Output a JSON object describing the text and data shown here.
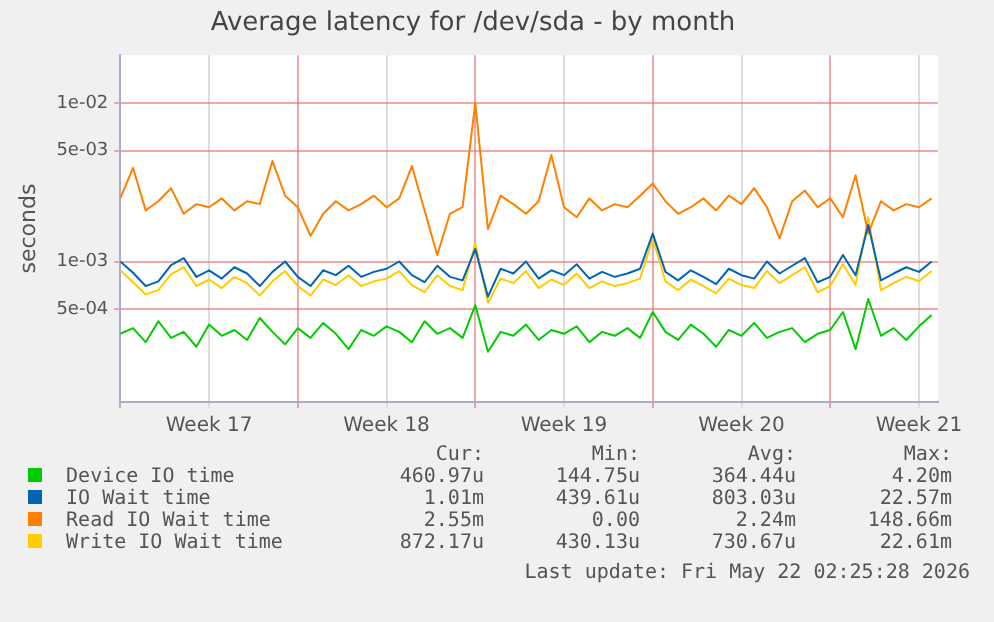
{
  "chart_data": {
    "type": "line",
    "title": "Average latency for /dev/sda - by month",
    "ylabel": "seconds",
    "log": "y",
    "grid": true,
    "legend": "bottom",
    "marker": "none",
    "line_style": "solid",
    "x": [
      "2026-04-20T00:00",
      "2026-04-20T12:00",
      "2026-04-21T00:00",
      "2026-04-21T12:00",
      "2026-04-22T00:00",
      "2026-04-22T12:00",
      "2026-04-23T00:00",
      "2026-04-23T12:00",
      "2026-04-24T00:00",
      "2026-04-24T12:00",
      "2026-04-25T00:00",
      "2026-04-25T12:00",
      "2026-04-26T00:00",
      "2026-04-26T12:00",
      "2026-04-27T00:00",
      "2026-04-27T12:00",
      "2026-04-28T00:00",
      "2026-04-28T12:00",
      "2026-04-29T00:00",
      "2026-04-29T12:00",
      "2026-04-30T00:00",
      "2026-04-30T12:00",
      "2026-05-01T00:00",
      "2026-05-01T12:00",
      "2026-05-02T00:00",
      "2026-05-02T12:00",
      "2026-05-03T00:00",
      "2026-05-03T12:00",
      "2026-05-04T00:00",
      "2026-05-04T12:00",
      "2026-05-05T00:00",
      "2026-05-05T12:00",
      "2026-05-06T00:00",
      "2026-05-06T12:00",
      "2026-05-07T00:00",
      "2026-05-07T12:00",
      "2026-05-08T00:00",
      "2026-05-08T12:00",
      "2026-05-09T00:00",
      "2026-05-09T12:00",
      "2026-05-10T00:00",
      "2026-05-10T12:00",
      "2026-05-11T00:00",
      "2026-05-11T12:00",
      "2026-05-12T00:00",
      "2026-05-12T12:00",
      "2026-05-13T00:00",
      "2026-05-13T12:00",
      "2026-05-14T00:00",
      "2026-05-14T12:00",
      "2026-05-15T00:00",
      "2026-05-15T12:00",
      "2026-05-16T00:00",
      "2026-05-16T12:00",
      "2026-05-17T00:00",
      "2026-05-17T12:00",
      "2026-05-18T00:00",
      "2026-05-18T12:00",
      "2026-05-19T00:00",
      "2026-05-19T12:00",
      "2026-05-20T00:00",
      "2026-05-20T12:00",
      "2026-05-21T00:00",
      "2026-05-21T12:00",
      "2026-05-22T00:00"
    ],
    "xlim": [
      "2026-04-20T00:00",
      "2026-05-22T06:00"
    ],
    "xticks": [
      {
        "value": "2026-04-20T00:00",
        "label": null
      },
      {
        "value": "2026-04-23T12:00",
        "label": "Week 17"
      },
      {
        "value": "2026-04-27T00:00",
        "label": null
      },
      {
        "value": "2026-04-30T12:00",
        "label": "Week 18"
      },
      {
        "value": "2026-05-04T00:00",
        "label": null
      },
      {
        "value": "2026-05-07T12:00",
        "label": "Week 19"
      },
      {
        "value": "2026-05-11T00:00",
        "label": null
      },
      {
        "value": "2026-05-14T12:00",
        "label": "Week 20"
      },
      {
        "value": "2026-05-18T00:00",
        "label": null
      },
      {
        "value": "2026-05-21T12:00",
        "label": "Week 21"
      }
    ],
    "ylim": [
      0.00013,
      0.02
    ],
    "yticks": [
      {
        "value": 0.0005,
        "label": "5e-04"
      },
      {
        "value": 0.001,
        "label": "1e-03"
      },
      {
        "value": 0.005,
        "label": "5e-03"
      },
      {
        "value": 0.01,
        "label": "1e-02"
      }
    ],
    "series": [
      {
        "name": "Device IO time",
        "color": "#00cc00",
        "values": [
          0.00035,
          0.00038,
          0.00031,
          0.00042,
          0.00033,
          0.00036,
          0.00029,
          0.0004,
          0.00034,
          0.00037,
          0.00032,
          0.00044,
          0.00036,
          0.0003,
          0.00038,
          0.00033,
          0.00041,
          0.00035,
          0.00028,
          0.00037,
          0.00034,
          0.00039,
          0.00036,
          0.00031,
          0.00042,
          0.00035,
          0.00038,
          0.00033,
          0.00053,
          0.00027,
          0.00036,
          0.00034,
          0.0004,
          0.00032,
          0.00037,
          0.00035,
          0.00039,
          0.00031,
          0.00036,
          0.00034,
          0.00038,
          0.00033,
          0.00048,
          0.00036,
          0.00032,
          0.0004,
          0.00035,
          0.00029,
          0.00037,
          0.00034,
          0.00041,
          0.00033,
          0.00036,
          0.00038,
          0.00031,
          0.00035,
          0.00037,
          0.00048,
          0.00028,
          0.00058,
          0.00034,
          0.00038,
          0.00032,
          0.00039,
          0.00046
        ]
      },
      {
        "name": "IO Wait time",
        "color": "#0066b3",
        "values": [
          0.001,
          0.00085,
          0.0007,
          0.00075,
          0.00095,
          0.00105,
          0.0008,
          0.00088,
          0.00078,
          0.00092,
          0.00084,
          0.0007,
          0.00086,
          0.001,
          0.0008,
          0.0007,
          0.00088,
          0.00082,
          0.00094,
          0.0008,
          0.00086,
          0.0009,
          0.001,
          0.00082,
          0.00074,
          0.00094,
          0.0008,
          0.00076,
          0.0012,
          0.0006,
          0.0009,
          0.00084,
          0.001,
          0.00078,
          0.00088,
          0.00082,
          0.00096,
          0.00078,
          0.00086,
          0.0008,
          0.00084,
          0.0009,
          0.0015,
          0.00086,
          0.00076,
          0.00088,
          0.0008,
          0.00072,
          0.0009,
          0.00082,
          0.00078,
          0.001,
          0.00084,
          0.00094,
          0.00105,
          0.00074,
          0.0008,
          0.0011,
          0.00082,
          0.0017,
          0.00076,
          0.00084,
          0.00092,
          0.00086,
          0.001
        ]
      },
      {
        "name": "Read IO Wait time",
        "color": "#ff8000",
        "values": [
          0.0025,
          0.0039,
          0.0021,
          0.0024,
          0.0029,
          0.002,
          0.0023,
          0.0022,
          0.0025,
          0.0021,
          0.0024,
          0.0023,
          0.0043,
          0.0026,
          0.0022,
          0.00145,
          0.002,
          0.0024,
          0.0021,
          0.0023,
          0.0026,
          0.0022,
          0.0025,
          0.004,
          0.0021,
          0.0011,
          0.002,
          0.0022,
          0.01,
          0.0016,
          0.0026,
          0.0023,
          0.002,
          0.0024,
          0.0047,
          0.0022,
          0.0019,
          0.0025,
          0.0021,
          0.0023,
          0.0022,
          0.0026,
          0.0031,
          0.0024,
          0.002,
          0.0022,
          0.0025,
          0.0021,
          0.0026,
          0.0023,
          0.0029,
          0.0022,
          0.0014,
          0.0024,
          0.0028,
          0.0022,
          0.0025,
          0.0019,
          0.0035,
          0.0015,
          0.0024,
          0.0021,
          0.0023,
          0.0022,
          0.0025
        ]
      },
      {
        "name": "Write IO Wait time",
        "color": "#ffcc00",
        "values": [
          0.00088,
          0.00074,
          0.00062,
          0.00066,
          0.00083,
          0.00092,
          0.0007,
          0.00077,
          0.00068,
          0.0008,
          0.00073,
          0.00061,
          0.00075,
          0.00087,
          0.0007,
          0.00061,
          0.00077,
          0.00071,
          0.00082,
          0.0007,
          0.00075,
          0.00078,
          0.00087,
          0.00071,
          0.00064,
          0.00082,
          0.0007,
          0.00066,
          0.0013,
          0.00055,
          0.00078,
          0.00073,
          0.00087,
          0.00068,
          0.00077,
          0.00071,
          0.00084,
          0.00068,
          0.00075,
          0.0007,
          0.00073,
          0.00078,
          0.0014,
          0.00075,
          0.00066,
          0.00077,
          0.0007,
          0.00063,
          0.00078,
          0.00071,
          0.00068,
          0.00087,
          0.00073,
          0.00082,
          0.00092,
          0.00064,
          0.0007,
          0.00096,
          0.00071,
          0.0019,
          0.00066,
          0.00073,
          0.0008,
          0.00075,
          0.00087
        ]
      }
    ],
    "annotations": [
      "Cur:",
      "Min:",
      "Avg:",
      "Max:",
      "460.97u",
      "144.75u",
      "364.44u",
      "4.20m",
      "1.01m",
      "439.61u",
      "803.03u",
      "22.57m",
      "2.55m",
      "0.00",
      "2.24m",
      "148.66m",
      "872.17u",
      "430.13u",
      "730.67u",
      "22.61m",
      "Last update: Fri May 22 02:25:28 2026"
    ]
  }
}
